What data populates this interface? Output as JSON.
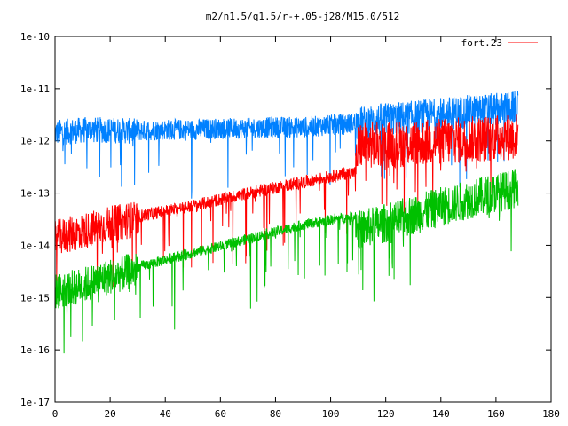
{
  "chart_data": {
    "type": "line",
    "title": "m2/n1.5/q1.5/r-+.05-j28/M15.0/512",
    "xlabel": "",
    "ylabel": "",
    "xlim": [
      0,
      180
    ],
    "ylim": [
      1e-17,
      1e-10
    ],
    "y_scale": "log",
    "x_ticks": [
      "0",
      "20",
      "40",
      "60",
      "80",
      "100",
      "120",
      "140",
      "160",
      "180"
    ],
    "y_ticks": [
      "1e-17",
      "1e-16",
      "1e-15",
      "1e-14",
      "1e-13",
      "1e-12",
      "1e-11",
      "1e-10"
    ],
    "grid": false,
    "legend_position": "top-right",
    "series": [
      {
        "name": "fort.23",
        "color": "#ff0000",
        "x": [
          0,
          10,
          20,
          30,
          40,
          50,
          60,
          70,
          80,
          90,
          100,
          109,
          110,
          120,
          130,
          140,
          150,
          160,
          168
        ],
        "y": [
          1.6e-14,
          2.2e-14,
          3e-14,
          3.8e-14,
          4.8e-14,
          6e-14,
          8e-14,
          1.05e-13,
          1.35e-13,
          1.7e-13,
          2.2e-13,
          2.7e-13,
          1e-12,
          1.05e-12,
          1.1e-12,
          1.2e-12,
          1.3e-12,
          1.4e-12,
          1.5e-12
        ]
      },
      {
        "name": "",
        "color": "#0080ff",
        "x": [
          0,
          10,
          20,
          30,
          40,
          50,
          60,
          70,
          80,
          90,
          100,
          109,
          110,
          120,
          130,
          140,
          150,
          160,
          168
        ],
        "y": [
          1.6e-12,
          1.8e-12,
          1.8e-12,
          1.7e-12,
          1.8e-12,
          1.8e-12,
          1.9e-12,
          1.9e-12,
          2e-12,
          2e-12,
          2.2e-12,
          2.4e-12,
          2.5e-12,
          3e-12,
          3.3e-12,
          3.8e-12,
          4.2e-12,
          4.6e-12,
          5e-12
        ]
      },
      {
        "name": "",
        "color": "#00c000",
        "x": [
          0,
          10,
          20,
          30,
          40,
          50,
          60,
          70,
          80,
          90,
          100,
          109,
          110,
          120,
          130,
          140,
          150,
          160,
          168
        ],
        "y": [
          1.5e-15,
          2e-15,
          3e-15,
          4e-15,
          5.5e-15,
          7.5e-15,
          1e-14,
          1.4e-14,
          1.9e-14,
          2.6e-14,
          3.2e-14,
          3.8e-14,
          2.3e-14,
          3.2e-14,
          4.5e-14,
          6.5e-14,
          9e-14,
          1.2e-13,
          1.5e-13
        ]
      }
    ]
  }
}
